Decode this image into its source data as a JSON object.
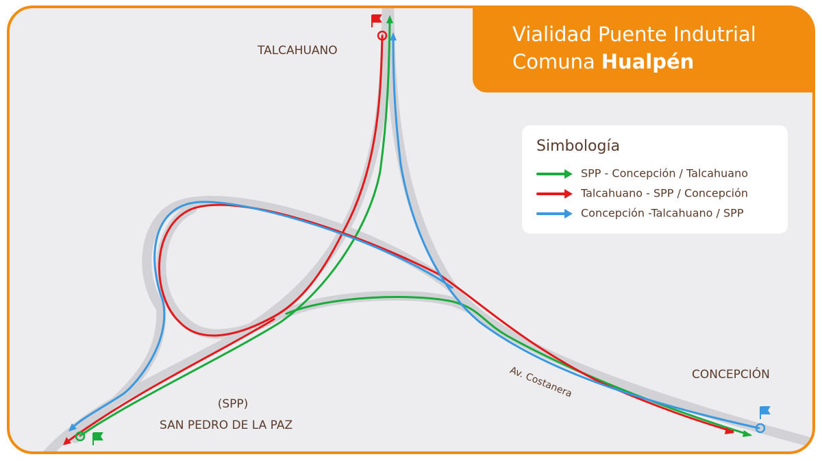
{
  "title": {
    "line1": "Vialidad Puente Indutrial",
    "line2_prefix": "Comuna",
    "line2_bold": "Hualpén"
  },
  "legend": {
    "title": "Simbología",
    "items": [
      {
        "name": "SPP - Concepción / Talcahuano",
        "color": "#1aab3c"
      },
      {
        "name": "Talcahuano - SPP / Concepción",
        "color": "#e3191c"
      },
      {
        "name": "Concepción -Talcahuano / SPP",
        "color": "#3a98e0"
      }
    ]
  },
  "places": {
    "talcahuano": "TALCAHUANO",
    "spp_abbr": "(SPP)",
    "san_pedro": "SAN PEDRO DE LA PAZ",
    "concepcion": "CONCEPCIÓN",
    "road": "Av. Costanera"
  }
}
